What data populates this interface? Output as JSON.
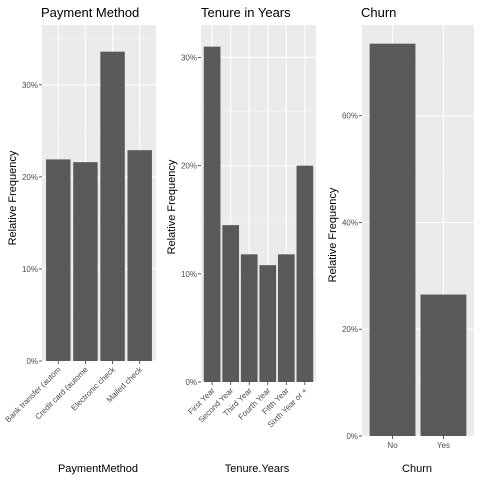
{
  "chart_data": [
    {
      "type": "bar",
      "title": "Payment Method",
      "xlabel": "PaymentMethod",
      "ylabel": "Relative Frequency",
      "categories": [
        "Bank transfer (autom",
        "Credit card (autome",
        "Electronic check",
        "Mailed check"
      ],
      "values": [
        0.219,
        0.216,
        0.336,
        0.229
      ],
      "ylim": [
        0,
        0.365
      ],
      "yticks": [
        0,
        0.1,
        0.2,
        0.3
      ],
      "ytick_labels": [
        "0%",
        "10%",
        "20%",
        "30%"
      ],
      "bar_color": "#595959",
      "grid": true
    },
    {
      "type": "bar",
      "title": "Tenure in Years",
      "xlabel": "Tenure.Years",
      "ylabel": "Relative Frequency",
      "categories": [
        "First Year",
        "Second Year",
        "Third Year",
        "Fourth Year",
        "Fifth Year",
        "Sixth Year or +"
      ],
      "values": [
        0.31,
        0.145,
        0.118,
        0.108,
        0.118,
        0.2
      ],
      "ylim": [
        0,
        0.33
      ],
      "yticks": [
        0,
        0.1,
        0.2,
        0.3
      ],
      "ytick_labels": [
        "0%",
        "10%",
        "20%",
        "30%"
      ],
      "bar_color": "#595959",
      "grid": true
    },
    {
      "type": "bar",
      "title": "Churn",
      "xlabel": "Churn",
      "ylabel": "Relative Frequency",
      "categories": [
        "No",
        "Yes"
      ],
      "values": [
        0.735,
        0.265
      ],
      "ylim": [
        0,
        0.77
      ],
      "yticks": [
        0,
        0.2,
        0.4,
        0.6
      ],
      "ytick_labels": [
        "0%",
        "20%",
        "40%",
        "60%"
      ],
      "bar_color": "#595959",
      "grid": true
    }
  ],
  "colors": {
    "panel_background": "#ebebeb",
    "grid_major": "#ffffff",
    "grid_minor": "#f5f5f5",
    "bars": "#595959",
    "tick_text": "#4d4d4d"
  }
}
